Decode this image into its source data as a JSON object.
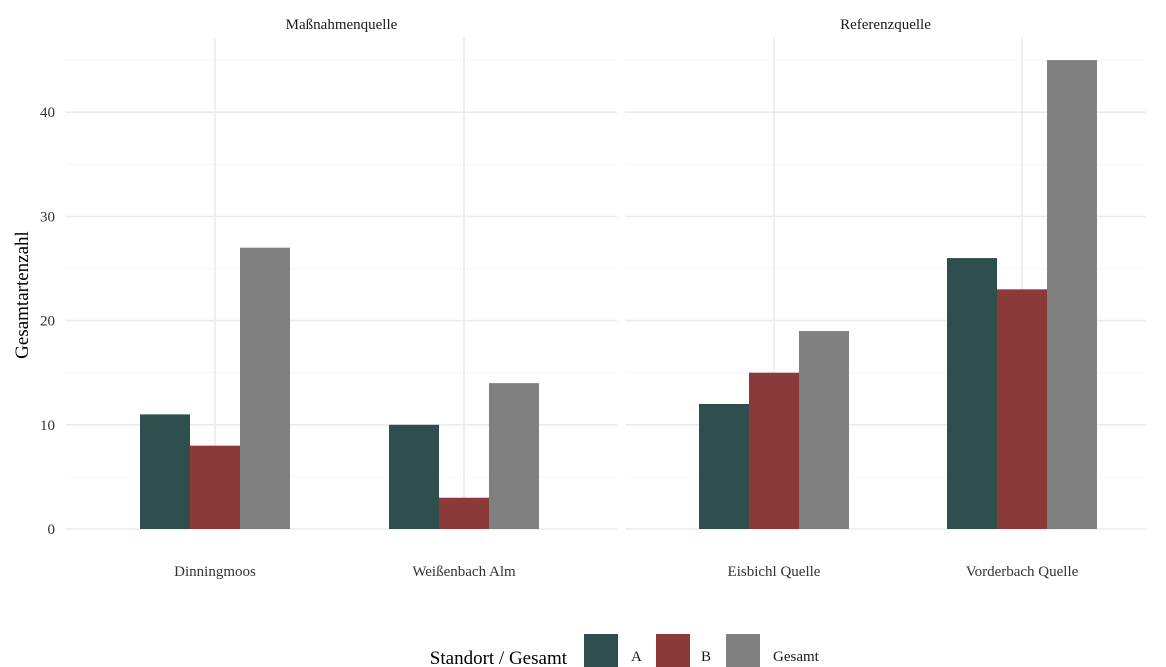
{
  "chart_data": {
    "type": "bar",
    "ylabel": "Gesamtartenzahl",
    "xlabel": "",
    "ylim": [
      0,
      46
    ],
    "yticks": [
      0,
      10,
      20,
      30,
      40
    ],
    "grid": true,
    "legend": {
      "position": "bottom",
      "title": "Standort / Gesamt",
      "entries": [
        "A",
        "B",
        "Gesamt"
      ]
    },
    "series": [
      {
        "name": "A",
        "color": "#2f4f4f"
      },
      {
        "name": "B",
        "color": "#8b3a3a"
      },
      {
        "name": "Gesamt",
        "color": "#808080"
      }
    ],
    "panels": [
      {
        "title": "Maßnahmenquelle",
        "categories": [
          "Dinningmoos",
          "Weißenbach Alm"
        ],
        "values": {
          "A": [
            11,
            10
          ],
          "B": [
            8,
            3
          ],
          "Gesamt": [
            27,
            14
          ]
        }
      },
      {
        "title": "Referenzquelle",
        "categories": [
          "Eisbichl Quelle",
          "Vorderbach Quelle"
        ],
        "values": {
          "A": [
            12,
            26
          ],
          "B": [
            15,
            23
          ],
          "Gesamt": [
            19,
            45
          ]
        }
      }
    ]
  }
}
